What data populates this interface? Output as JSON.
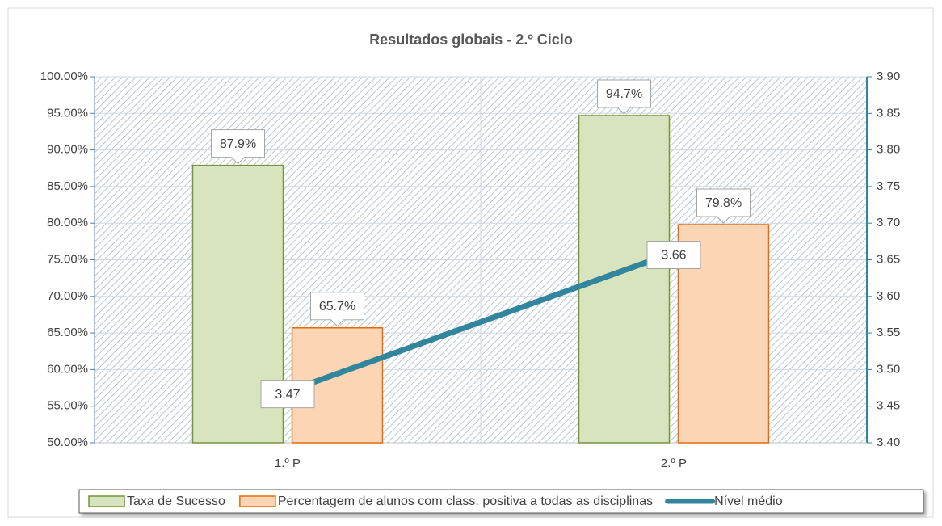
{
  "chart_data": {
    "type": "bar-line",
    "title": "Resultados globais - 2.º Ciclo",
    "categories": [
      "1.º P",
      "2.º P"
    ],
    "series": [
      {
        "name": "Taxa de Sucesso",
        "type": "bar",
        "color": "#d7e4bd",
        "border": "#77933c",
        "values": [
          87.9,
          94.7
        ],
        "value_labels": [
          "87.9%",
          "94.7%"
        ]
      },
      {
        "name": "Percentagem de alunos com class. positiva a todas as disciplinas",
        "type": "bar",
        "color": "#fcd5b5",
        "border": "#e46c0a",
        "values": [
          65.7,
          79.8
        ],
        "value_labels": [
          "65.7%",
          "79.8%"
        ]
      },
      {
        "name": "Nível médio",
        "type": "line",
        "color": "#31859c",
        "axis": "y2",
        "values": [
          3.47,
          3.66
        ]
      }
    ],
    "ylim": [
      50,
      100
    ],
    "yticks": [
      {
        "value": 50,
        "label": "50.00%"
      },
      {
        "value": 55,
        "label": "55.00%"
      },
      {
        "value": 60,
        "label": "60.00%"
      },
      {
        "value": 65,
        "label": "65.00%"
      },
      {
        "value": 70,
        "label": "70.00%"
      },
      {
        "value": 75,
        "label": "75.00%"
      },
      {
        "value": 80,
        "label": "80.00%"
      },
      {
        "value": 85,
        "label": "85.00%"
      },
      {
        "value": 90,
        "label": "90.00%"
      },
      {
        "value": 95,
        "label": "95.00%"
      },
      {
        "value": 100,
        "label": "100.00%"
      }
    ],
    "y2lim": [
      3.4,
      3.9
    ],
    "y2ticks": [
      {
        "value": 3.4,
        "label": "3.40"
      },
      3.45,
      {
        "value": 3.5,
        "label": "3.50"
      },
      3.55,
      {
        "value": 3.6,
        "label": "3.60"
      },
      3.65,
      {
        "value": 3.7,
        "label": "3.70"
      },
      3.75,
      {
        "value": 3.8,
        "label": "3.80"
      },
      3.85,
      {
        "value": 3.9,
        "label": "3.90"
      }
    ],
    "grid": true,
    "legend": "bottom"
  }
}
